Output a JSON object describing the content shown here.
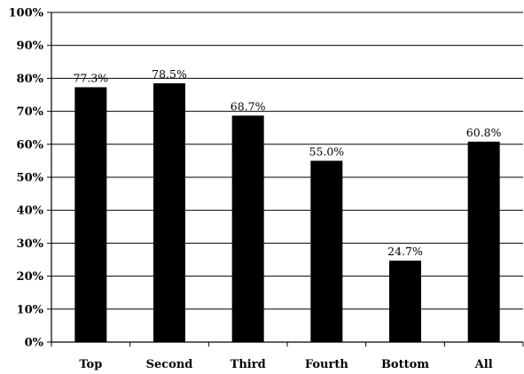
{
  "chart_data": {
    "type": "bar",
    "categories": [
      "Top",
      "Second",
      "Third",
      "Fourth",
      "Bottom",
      "All"
    ],
    "values": [
      77.3,
      78.5,
      68.7,
      55.0,
      24.7,
      60.8
    ],
    "data_labels": [
      "77.3%",
      "78.5%",
      "68.7%",
      "55.0%",
      "24.7%",
      "60.8%"
    ],
    "ylim": [
      0,
      100
    ],
    "y_ticks": [
      0,
      10,
      20,
      30,
      40,
      50,
      60,
      70,
      80,
      90,
      100
    ],
    "y_tick_labels": [
      "0%",
      "10%",
      "20%",
      "30%",
      "40%",
      "50%",
      "60%",
      "70%",
      "80%",
      "90%",
      "100%"
    ],
    "grid": true,
    "bar_color": "#000000",
    "grid_color": "#000000",
    "title": "",
    "xlabel": "",
    "ylabel": ""
  }
}
